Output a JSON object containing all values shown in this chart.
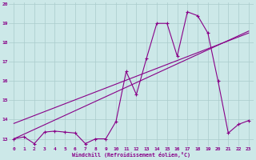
{
  "xlabel": "Windchill (Refroidissement éolien,°C)",
  "bg_color": "#cce8e8",
  "grid_color": "#aacccc",
  "line_color": "#880088",
  "xlim": [
    -0.5,
    23.5
  ],
  "ylim": [
    12.6,
    20.1
  ],
  "yticks": [
    13,
    14,
    15,
    16,
    17,
    18,
    19,
    20
  ],
  "xticks": [
    0,
    1,
    2,
    3,
    4,
    5,
    6,
    7,
    8,
    9,
    10,
    11,
    12,
    13,
    14,
    15,
    16,
    17,
    18,
    19,
    20,
    21,
    22,
    23
  ],
  "series1_x": [
    0,
    1,
    2,
    3,
    4,
    5,
    6,
    7,
    8,
    9,
    10,
    11,
    12,
    13,
    14,
    15,
    16,
    17,
    18,
    19,
    20,
    21,
    22,
    23
  ],
  "series1_y": [
    13.0,
    13.1,
    12.75,
    13.35,
    13.4,
    13.35,
    13.3,
    12.75,
    13.0,
    13.0,
    13.9,
    16.5,
    15.3,
    17.2,
    19.0,
    19.0,
    17.3,
    19.6,
    19.4,
    18.5,
    16.0,
    13.3,
    13.75,
    13.95
  ],
  "series2_x": [
    0,
    23
  ],
  "series2_y": [
    13.0,
    18.6
  ],
  "series3_x": [
    0,
    23
  ],
  "series3_y": [
    13.8,
    18.5
  ],
  "marker_x": [
    0,
    1,
    2,
    3,
    4,
    5,
    6,
    7,
    8,
    9,
    10,
    11,
    12,
    13,
    14,
    15,
    16,
    17,
    18,
    19,
    20,
    21,
    22,
    23
  ],
  "marker_y": [
    13.0,
    13.1,
    12.75,
    13.35,
    13.4,
    13.35,
    13.3,
    12.75,
    13.0,
    13.0,
    13.9,
    16.5,
    15.3,
    17.2,
    19.0,
    19.0,
    17.3,
    19.6,
    19.4,
    18.5,
    16.0,
    13.3,
    13.75,
    13.95
  ]
}
